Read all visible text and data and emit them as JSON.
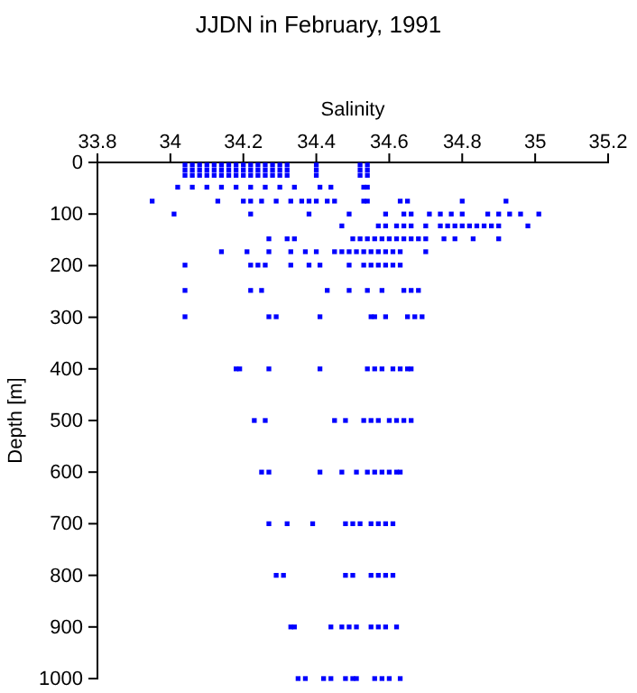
{
  "chart_data": {
    "type": "scatter",
    "title": "JJDN in February, 1991",
    "xlabel": "Salinity",
    "ylabel": "Depth [m]",
    "xlim": [
      33.8,
      35.2
    ],
    "xticks": [
      33.8,
      34,
      34.2,
      34.4,
      34.6,
      34.8,
      35,
      35.2
    ],
    "ylim": [
      1000,
      0
    ],
    "yticks": [
      0,
      100,
      200,
      300,
      400,
      500,
      600,
      700,
      800,
      900,
      1000
    ],
    "marker": "square",
    "series": [
      {
        "color": "#0000ff",
        "x": [
          34.04,
          34.06,
          34.08,
          34.1,
          34.12,
          34.14,
          34.16,
          34.18,
          34.2,
          34.22,
          34.24,
          34.26,
          34.28,
          34.3,
          34.32,
          34.4,
          34.52,
          34.54,
          34.04,
          34.06,
          34.08,
          34.1,
          34.12,
          34.14,
          34.16,
          34.18,
          34.2,
          34.22,
          34.24,
          34.26,
          34.28,
          34.3,
          34.32,
          34.4,
          34.52,
          34.54,
          34.04,
          34.06,
          34.08,
          34.1,
          34.12,
          34.14,
          34.16,
          34.18,
          34.2,
          34.22,
          34.24,
          34.26,
          34.28,
          34.3,
          34.32,
          34.4,
          34.52,
          34.54,
          34.02,
          34.06,
          34.1,
          34.14,
          34.18,
          34.22,
          34.26,
          34.3,
          34.34,
          34.41,
          34.44,
          34.53,
          34.54,
          33.95,
          34.13,
          34.2,
          34.22,
          34.25,
          34.29,
          34.33,
          34.36,
          34.38,
          34.4,
          34.43,
          34.45,
          34.53,
          34.54,
          34.63,
          34.65,
          34.8,
          34.92,
          34.01,
          34.22,
          34.38,
          34.49,
          34.59,
          34.64,
          34.66,
          34.71,
          34.74,
          34.77,
          34.8,
          34.87,
          34.9,
          34.93,
          34.96,
          35.01,
          34.47,
          34.57,
          34.59,
          34.62,
          34.64,
          34.66,
          34.7,
          34.74,
          34.76,
          34.78,
          34.8,
          34.82,
          34.84,
          34.86,
          34.88,
          34.9,
          34.98,
          34.27,
          34.32,
          34.34,
          34.5,
          34.52,
          34.54,
          34.56,
          34.58,
          34.6,
          34.62,
          34.64,
          34.66,
          34.68,
          34.7,
          34.75,
          34.78,
          34.83,
          34.9,
          34.14,
          34.21,
          34.27,
          34.33,
          34.37,
          34.4,
          34.45,
          34.47,
          34.49,
          34.51,
          34.53,
          34.55,
          34.57,
          34.59,
          34.61,
          34.63,
          34.7,
          34.04,
          34.22,
          34.24,
          34.26,
          34.33,
          34.38,
          34.41,
          34.49,
          34.53,
          34.55,
          34.57,
          34.59,
          34.61,
          34.63,
          34.04,
          34.22,
          34.25,
          34.43,
          34.49,
          34.54,
          34.58,
          34.64,
          34.66,
          34.68,
          34.04,
          34.27,
          34.29,
          34.41,
          34.55,
          34.56,
          34.59,
          34.65,
          34.67,
          34.69,
          34.18,
          34.19,
          34.27,
          34.41,
          34.54,
          34.56,
          34.58,
          34.61,
          34.63,
          34.65,
          34.66,
          34.23,
          34.26,
          34.45,
          34.48,
          34.53,
          34.55,
          34.57,
          34.6,
          34.62,
          34.64,
          34.66,
          34.25,
          34.27,
          34.41,
          34.47,
          34.51,
          34.54,
          34.56,
          34.58,
          34.6,
          34.62,
          34.63,
          34.27,
          34.32,
          34.39,
          34.48,
          34.5,
          34.52,
          34.55,
          34.57,
          34.59,
          34.61,
          34.29,
          34.31,
          34.48,
          34.5,
          34.55,
          34.57,
          34.59,
          34.61,
          34.33,
          34.34,
          34.44,
          34.47,
          34.49,
          34.51,
          34.55,
          34.57,
          34.59,
          34.62,
          34.35,
          34.37,
          34.42,
          34.44,
          34.48,
          34.5,
          34.51,
          34.56,
          34.58,
          34.6,
          34.63
        ],
        "values": [
          5,
          5,
          5,
          5,
          5,
          5,
          5,
          5,
          5,
          5,
          5,
          5,
          5,
          5,
          5,
          5,
          5,
          5,
          15,
          15,
          15,
          15,
          15,
          15,
          15,
          15,
          15,
          15,
          15,
          15,
          15,
          15,
          15,
          15,
          15,
          15,
          25,
          25,
          25,
          25,
          25,
          25,
          25,
          25,
          25,
          25,
          25,
          25,
          25,
          25,
          25,
          25,
          25,
          25,
          48,
          48,
          48,
          48,
          48,
          48,
          48,
          48,
          48,
          48,
          48,
          48,
          48,
          75,
          75,
          75,
          75,
          75,
          75,
          75,
          75,
          75,
          75,
          75,
          75,
          75,
          75,
          75,
          75,
          75,
          75,
          100,
          100,
          100,
          100,
          100,
          100,
          100,
          100,
          100,
          100,
          100,
          100,
          100,
          100,
          100,
          100,
          123,
          123,
          123,
          123,
          123,
          123,
          123,
          123,
          123,
          123,
          123,
          123,
          123,
          123,
          123,
          123,
          123,
          148,
          148,
          148,
          148,
          148,
          148,
          148,
          148,
          148,
          148,
          148,
          148,
          148,
          148,
          148,
          148,
          148,
          148,
          173,
          173,
          173,
          173,
          173,
          173,
          173,
          173,
          173,
          173,
          173,
          173,
          173,
          173,
          173,
          173,
          173,
          199,
          199,
          199,
          199,
          199,
          199,
          199,
          199,
          199,
          199,
          199,
          199,
          199,
          199,
          248,
          248,
          248,
          248,
          248,
          248,
          248,
          248,
          248,
          248,
          299,
          299,
          299,
          299,
          299,
          299,
          299,
          299,
          299,
          299,
          400,
          400,
          400,
          400,
          400,
          400,
          400,
          400,
          400,
          400,
          400,
          500,
          500,
          500,
          500,
          500,
          500,
          500,
          500,
          500,
          500,
          500,
          600,
          600,
          600,
          600,
          600,
          600,
          600,
          600,
          600,
          600,
          600,
          700,
          700,
          700,
          700,
          700,
          700,
          700,
          700,
          700,
          700,
          800,
          800,
          800,
          800,
          800,
          800,
          800,
          800,
          900,
          900,
          900,
          900,
          900,
          900,
          900,
          900,
          900,
          900,
          1000,
          1000,
          1000,
          1000,
          1000,
          1000,
          1000,
          1000,
          1000,
          1000,
          1000
        ]
      }
    ]
  }
}
